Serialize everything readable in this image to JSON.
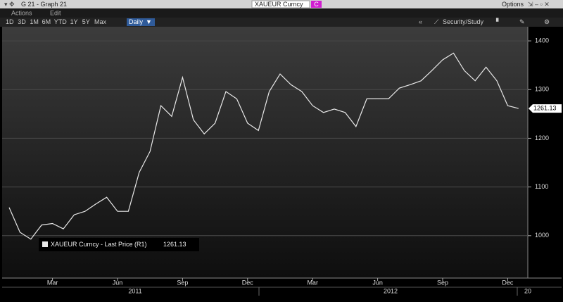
{
  "window": {
    "title": "G 21 - Graph 21",
    "security": "XAUEUR Curncy",
    "security_tag": "C",
    "options": "Options",
    "menu": [
      "Actions",
      "Edit"
    ],
    "periods": [
      "1D",
      "3D",
      "1M",
      "6M",
      "YTD",
      "1Y",
      "5Y",
      "Max"
    ],
    "frequency": "Daily",
    "study_button": "Security/Study"
  },
  "chart_data": {
    "type": "line",
    "categories": [
      null,
      null,
      null,
      null,
      "Mar",
      null,
      null,
      null,
      null,
      null,
      "Jun",
      null,
      null,
      null,
      null,
      null,
      "Sep",
      null,
      null,
      null,
      null,
      null,
      "Dec",
      null,
      null,
      null,
      null,
      null,
      "Mar",
      null,
      null,
      null,
      null,
      null,
      "Jun",
      null,
      null,
      null,
      null,
      null,
      "Sep",
      null,
      null,
      null,
      null,
      null,
      "Dec",
      null
    ],
    "years": [
      "2011",
      "2012",
      "20"
    ],
    "series": [
      {
        "name": "XAUEUR Curncy - Last Price (R1)",
        "color": "#e8e8e8",
        "values": [
          1058,
          1007,
          993,
          1022,
          1025,
          1014,
          1043,
          1050,
          1065,
          1079,
          1050,
          1050,
          1130,
          1173,
          1267,
          1245,
          1325,
          1238,
          1209,
          1231,
          1296,
          1281,
          1231,
          1216,
          1296,
          1332,
          1310,
          1296,
          1267,
          1253,
          1260,
          1253,
          1224,
          1281,
          1281,
          1281,
          1303,
          1310,
          1318,
          1339,
          1361,
          1375,
          1339,
          1318,
          1346,
          1318,
          1267,
          1261.13
        ]
      }
    ],
    "ylim": [
      913,
      1429
    ],
    "yticks": [
      1000,
      1100,
      1200,
      1300,
      1400
    ],
    "grid": true
  }
}
